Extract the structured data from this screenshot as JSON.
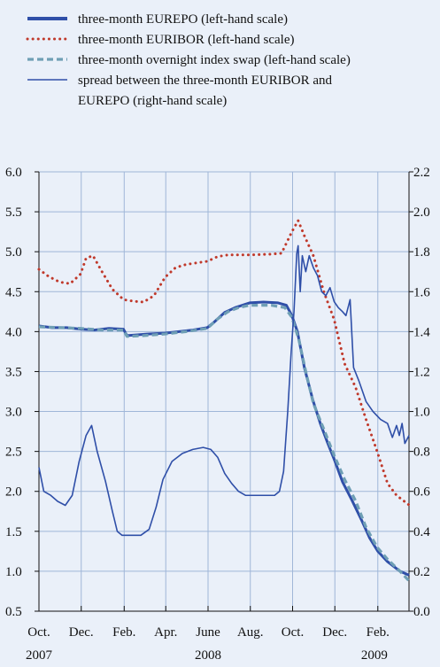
{
  "chart_data": {
    "type": "line",
    "title": "",
    "legend_position": "top",
    "grid": true,
    "left_axis": {
      "ylim": [
        0.5,
        6.0
      ],
      "ticks": [
        0.5,
        1.0,
        1.5,
        2.0,
        2.5,
        3.0,
        3.5,
        4.0,
        4.5,
        5.0,
        5.5,
        6.0
      ],
      "tick_labels": [
        "0.5",
        "1.0",
        "1.5",
        "2.0",
        "2.5",
        "3.0",
        "3.5",
        "4.0",
        "4.5",
        "5.0",
        "5.5",
        "6.0"
      ]
    },
    "right_axis": {
      "ylim": [
        0.0,
        2.2
      ],
      "ticks": [
        0.0,
        0.2,
        0.4,
        0.6,
        0.8,
        1.0,
        1.2,
        1.4,
        1.6,
        1.8,
        2.0,
        2.2
      ],
      "tick_labels": [
        "0.0",
        "0.2",
        "0.4",
        "0.6",
        "0.8",
        "1.0",
        "1.2",
        "1.4",
        "1.6",
        "1.8",
        "2.0",
        "2.2"
      ]
    },
    "x_axis": {
      "xlim": [
        "2007-10-01",
        "2009-03-18"
      ],
      "ticks": [
        "2007-10-01",
        "2007-12-01",
        "2008-02-01",
        "2008-04-01",
        "2008-06-01",
        "2008-08-01",
        "2008-10-01",
        "2008-12-01",
        "2009-02-01"
      ],
      "month_labels": [
        "Oct.",
        "Dec.",
        "Feb.",
        "Apr.",
        "June",
        "Aug.",
        "Oct.",
        "Dec.",
        "Feb."
      ],
      "year_labels": [
        {
          "label": "2007",
          "date": "2007-10-01"
        },
        {
          "label": "2008",
          "date": "2008-06-01"
        },
        {
          "label": "2009",
          "date": "2009-01-27"
        }
      ]
    },
    "series": [
      {
        "name": "three-month EUREPO (left-hand scale)",
        "axis": "left",
        "color": "#2f4fa8",
        "style": "solid-thick",
        "points": [
          [
            "2007-10-01",
            4.07
          ],
          [
            "2007-10-20",
            4.05
          ],
          [
            "2007-11-10",
            4.05
          ],
          [
            "2007-12-01",
            4.03
          ],
          [
            "2007-12-20",
            4.02
          ],
          [
            "2008-01-10",
            4.04
          ],
          [
            "2008-01-31",
            4.03
          ],
          [
            "2008-02-05",
            3.95
          ],
          [
            "2008-02-20",
            3.96
          ],
          [
            "2008-03-05",
            3.97
          ],
          [
            "2008-03-31",
            3.98
          ],
          [
            "2008-04-20",
            4.0
          ],
          [
            "2008-05-10",
            4.02
          ],
          [
            "2008-05-31",
            4.05
          ],
          [
            "2008-06-10",
            4.12
          ],
          [
            "2008-06-25",
            4.24
          ],
          [
            "2008-07-10",
            4.3
          ],
          [
            "2008-07-31",
            4.36
          ],
          [
            "2008-08-20",
            4.37
          ],
          [
            "2008-09-10",
            4.36
          ],
          [
            "2008-09-22",
            4.33
          ],
          [
            "2008-09-30",
            4.2
          ],
          [
            "2008-10-08",
            4.0
          ],
          [
            "2008-10-18",
            3.55
          ],
          [
            "2008-10-30",
            3.15
          ],
          [
            "2008-11-10",
            2.85
          ],
          [
            "2008-11-20",
            2.62
          ],
          [
            "2008-12-01",
            2.38
          ],
          [
            "2008-12-12",
            2.12
          ],
          [
            "2008-12-25",
            1.9
          ],
          [
            "2009-01-08",
            1.65
          ],
          [
            "2009-01-20",
            1.42
          ],
          [
            "2009-02-01",
            1.25
          ],
          [
            "2009-02-15",
            1.12
          ],
          [
            "2009-03-05",
            1.0
          ],
          [
            "2009-03-18",
            0.95
          ]
        ]
      },
      {
        "name": "three-month EURIBOR (left-hand scale)",
        "axis": "left",
        "color": "#c0392b",
        "style": "dotted",
        "points": [
          [
            "2007-10-01",
            4.78
          ],
          [
            "2007-10-15",
            4.69
          ],
          [
            "2007-10-31",
            4.62
          ],
          [
            "2007-11-15",
            4.6
          ],
          [
            "2007-11-30",
            4.72
          ],
          [
            "2007-12-08",
            4.92
          ],
          [
            "2007-12-18",
            4.95
          ],
          [
            "2007-12-31",
            4.75
          ],
          [
            "2008-01-15",
            4.53
          ],
          [
            "2008-01-31",
            4.4
          ],
          [
            "2008-02-15",
            4.38
          ],
          [
            "2008-02-29",
            4.37
          ],
          [
            "2008-03-15",
            4.45
          ],
          [
            "2008-03-31",
            4.68
          ],
          [
            "2008-04-15",
            4.8
          ],
          [
            "2008-04-30",
            4.84
          ],
          [
            "2008-05-15",
            4.86
          ],
          [
            "2008-05-31",
            4.88
          ],
          [
            "2008-06-15",
            4.94
          ],
          [
            "2008-06-30",
            4.96
          ],
          [
            "2008-07-31",
            4.96
          ],
          [
            "2008-08-31",
            4.97
          ],
          [
            "2008-09-15",
            4.98
          ],
          [
            "2008-09-30",
            5.25
          ],
          [
            "2008-10-09",
            5.39
          ],
          [
            "2008-10-18",
            5.2
          ],
          [
            "2008-10-31",
            4.95
          ],
          [
            "2008-11-15",
            4.5
          ],
          [
            "2008-11-30",
            4.15
          ],
          [
            "2008-12-15",
            3.6
          ],
          [
            "2008-12-31",
            3.3
          ],
          [
            "2009-01-15",
            2.9
          ],
          [
            "2009-01-31",
            2.5
          ],
          [
            "2009-02-15",
            2.1
          ],
          [
            "2009-02-28",
            1.95
          ],
          [
            "2009-03-18",
            1.83
          ]
        ]
      },
      {
        "name": "three-month overnight index swap (left-hand scale)",
        "axis": "left",
        "color": "#6f9fb5",
        "style": "dashed",
        "points": [
          [
            "2007-10-01",
            4.06
          ],
          [
            "2007-10-31",
            4.05
          ],
          [
            "2007-11-30",
            4.04
          ],
          [
            "2007-12-31",
            4.02
          ],
          [
            "2008-01-31",
            4.02
          ],
          [
            "2008-02-05",
            3.94
          ],
          [
            "2008-02-29",
            3.95
          ],
          [
            "2008-03-31",
            3.97
          ],
          [
            "2008-04-30",
            4.0
          ],
          [
            "2008-05-31",
            4.04
          ],
          [
            "2008-06-15",
            4.16
          ],
          [
            "2008-06-30",
            4.25
          ],
          [
            "2008-07-15",
            4.3
          ],
          [
            "2008-07-31",
            4.33
          ],
          [
            "2008-08-31",
            4.33
          ],
          [
            "2008-09-20",
            4.3
          ],
          [
            "2008-09-30",
            4.18
          ],
          [
            "2008-10-10",
            3.9
          ],
          [
            "2008-10-20",
            3.5
          ],
          [
            "2008-10-31",
            3.1
          ],
          [
            "2008-11-15",
            2.78
          ],
          [
            "2008-11-30",
            2.45
          ],
          [
            "2008-12-15",
            2.15
          ],
          [
            "2008-12-31",
            1.88
          ],
          [
            "2009-01-15",
            1.55
          ],
          [
            "2009-01-31",
            1.3
          ],
          [
            "2009-02-15",
            1.15
          ],
          [
            "2009-03-05",
            1.0
          ],
          [
            "2009-03-18",
            0.88
          ]
        ]
      },
      {
        "name": "spread between the three-month EURIBOR and EUREPO (right-hand scale)",
        "axis": "right",
        "color": "#2f4fa8",
        "style": "solid-thin",
        "points": [
          [
            "2007-10-01",
            0.72
          ],
          [
            "2007-10-08",
            0.6
          ],
          [
            "2007-10-18",
            0.58
          ],
          [
            "2007-10-28",
            0.55
          ],
          [
            "2007-11-08",
            0.53
          ],
          [
            "2007-11-18",
            0.58
          ],
          [
            "2007-11-28",
            0.75
          ],
          [
            "2007-12-08",
            0.88
          ],
          [
            "2007-12-16",
            0.93
          ],
          [
            "2007-12-24",
            0.8
          ],
          [
            "2008-01-05",
            0.65
          ],
          [
            "2008-01-15",
            0.5
          ],
          [
            "2008-01-22",
            0.4
          ],
          [
            "2008-01-29",
            0.38
          ],
          [
            "2008-02-10",
            0.38
          ],
          [
            "2008-02-25",
            0.38
          ],
          [
            "2008-03-08",
            0.41
          ],
          [
            "2008-03-18",
            0.52
          ],
          [
            "2008-03-28",
            0.66
          ],
          [
            "2008-04-10",
            0.75
          ],
          [
            "2008-04-25",
            0.79
          ],
          [
            "2008-05-10",
            0.81
          ],
          [
            "2008-05-25",
            0.82
          ],
          [
            "2008-06-05",
            0.81
          ],
          [
            "2008-06-15",
            0.77
          ],
          [
            "2008-06-25",
            0.69
          ],
          [
            "2008-07-05",
            0.64
          ],
          [
            "2008-07-15",
            0.6
          ],
          [
            "2008-07-25",
            0.58
          ],
          [
            "2008-08-05",
            0.58
          ],
          [
            "2008-08-20",
            0.58
          ],
          [
            "2008-09-05",
            0.58
          ],
          [
            "2008-09-12",
            0.6
          ],
          [
            "2008-09-18",
            0.7
          ],
          [
            "2008-09-24",
            1.0
          ],
          [
            "2008-09-29",
            1.3
          ],
          [
            "2008-10-03",
            1.5
          ],
          [
            "2008-10-07",
            1.79
          ],
          [
            "2008-10-09",
            1.83
          ],
          [
            "2008-10-12",
            1.6
          ],
          [
            "2008-10-15",
            1.78
          ],
          [
            "2008-10-20",
            1.7
          ],
          [
            "2008-10-25",
            1.78
          ],
          [
            "2008-10-31",
            1.72
          ],
          [
            "2008-11-06",
            1.68
          ],
          [
            "2008-11-12",
            1.6
          ],
          [
            "2008-11-18",
            1.58
          ],
          [
            "2008-11-24",
            1.62
          ],
          [
            "2008-11-30",
            1.55
          ],
          [
            "2008-12-06",
            1.52
          ],
          [
            "2008-12-12",
            1.5
          ],
          [
            "2008-12-17",
            1.48
          ],
          [
            "2008-12-23",
            1.56
          ],
          [
            "2008-12-28",
            1.22
          ],
          [
            "2009-01-05",
            1.15
          ],
          [
            "2009-01-15",
            1.05
          ],
          [
            "2009-01-25",
            1.0
          ],
          [
            "2009-02-05",
            0.96
          ],
          [
            "2009-02-15",
            0.94
          ],
          [
            "2009-02-22",
            0.87
          ],
          [
            "2009-02-28",
            0.93
          ],
          [
            "2009-03-04",
            0.88
          ],
          [
            "2009-03-08",
            0.94
          ],
          [
            "2009-03-12",
            0.84
          ],
          [
            "2009-03-15",
            0.86
          ],
          [
            "2009-03-18",
            0.88
          ]
        ]
      }
    ]
  }
}
